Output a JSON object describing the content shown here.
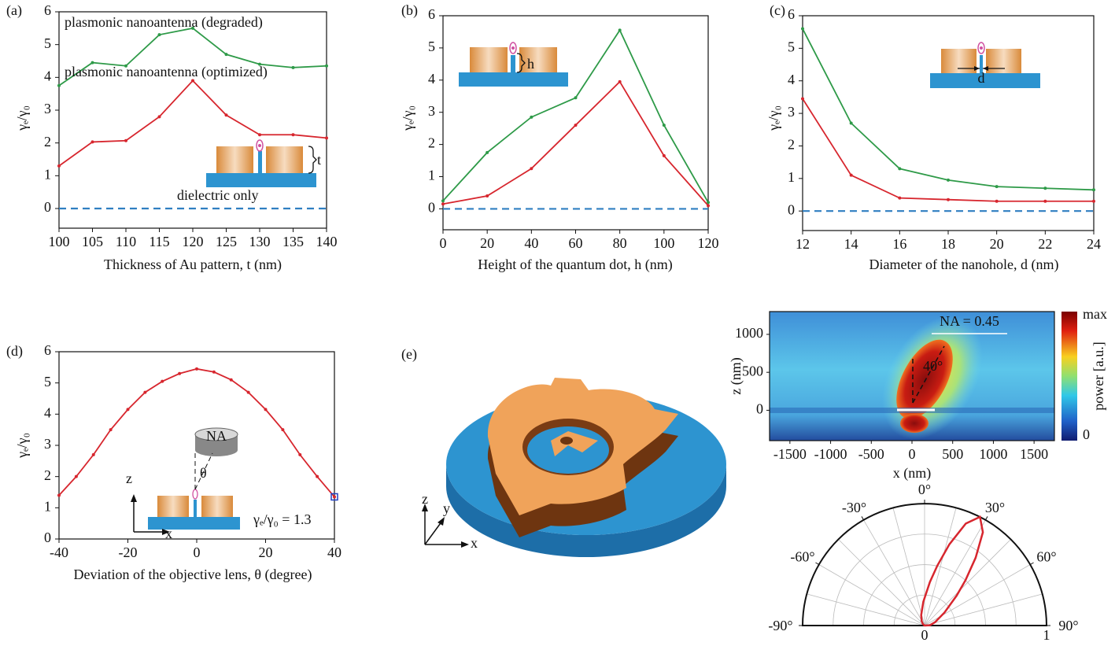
{
  "chart_data": [
    {
      "type": "line",
      "panel": "(a)",
      "xlabel": "Thickness of Au pattern, t (nm)",
      "ylabel": "γₑ/γ₀",
      "x": [
        100,
        105,
        110,
        115,
        120,
        125,
        130,
        135,
        140
      ],
      "xlim": [
        100,
        140
      ],
      "xticks": [
        100,
        105,
        110,
        115,
        120,
        125,
        130,
        135,
        140
      ],
      "ylim": [
        -0.6,
        6
      ],
      "yticks": [
        0,
        1,
        2,
        3,
        4,
        5,
        6
      ],
      "series": [
        {
          "name": "plasmonic nanoantenna (degraded)",
          "color": "#2e9a48",
          "values": [
            3.75,
            4.45,
            4.35,
            5.3,
            5.5,
            4.7,
            4.4,
            4.3,
            4.35
          ]
        },
        {
          "name": "plasmonic nanoantenna (optimized)",
          "color": "#d7262e",
          "values": [
            1.3,
            2.03,
            2.07,
            2.8,
            3.9,
            2.85,
            2.25,
            2.25,
            2.15
          ]
        },
        {
          "name": "dielectric only",
          "color": "#2f7fc1",
          "dashed": true,
          "values": [
            0,
            0,
            0,
            0,
            0,
            0,
            0,
            0,
            0
          ]
        }
      ],
      "inset_label": "t"
    },
    {
      "type": "line",
      "panel": "(b)",
      "xlabel": "Height of the quantum dot, h (nm)",
      "ylabel": "γₑ/γ₀",
      "x": [
        0,
        20,
        40,
        60,
        80,
        100,
        120
      ],
      "xlim": [
        0,
        120
      ],
      "xticks": [
        0,
        20,
        40,
        60,
        80,
        100,
        120
      ],
      "ylim": [
        -0.65,
        6
      ],
      "yticks": [
        0,
        1,
        2,
        3,
        4,
        5,
        6
      ],
      "series": [
        {
          "color": "#2e9a48",
          "values": [
            0.25,
            1.75,
            2.85,
            3.45,
            5.55,
            2.6,
            0.2
          ]
        },
        {
          "color": "#d7262e",
          "values": [
            0.15,
            0.4,
            1.25,
            2.6,
            3.95,
            1.65,
            0.1
          ]
        },
        {
          "color": "#2f7fc1",
          "dashed": true,
          "values": [
            0,
            0,
            0,
            0,
            0,
            0,
            0
          ]
        }
      ],
      "inset_label": "h"
    },
    {
      "type": "line",
      "panel": "(c)",
      "xlabel": "Diameter of the nanohole, d (nm)",
      "ylabel": "γₑ/γ₀",
      "x": [
        12,
        14,
        16,
        18,
        20,
        22,
        24
      ],
      "xlim": [
        12,
        24
      ],
      "xticks": [
        12,
        14,
        16,
        18,
        20,
        22,
        24
      ],
      "ylim": [
        -0.6,
        6
      ],
      "yticks": [
        0,
        1,
        2,
        3,
        4,
        5,
        6
      ],
      "series": [
        {
          "color": "#2e9a48",
          "values": [
            5.6,
            2.7,
            1.3,
            0.95,
            0.75,
            0.7,
            0.65
          ]
        },
        {
          "color": "#d7262e",
          "values": [
            3.45,
            1.1,
            0.4,
            0.35,
            0.3,
            0.3,
            0.3
          ]
        },
        {
          "color": "#2f7fc1",
          "dashed": true,
          "values": [
            0,
            0,
            0,
            0,
            0,
            0,
            0
          ]
        }
      ],
      "inset_label": "d"
    },
    {
      "type": "line",
      "panel": "(d)",
      "xlabel": "Deviation of the objective lens, θ (degree)",
      "ylabel": "γₑ/γ₀",
      "x": [
        -40,
        -35,
        -30,
        -25,
        -20,
        -15,
        -10,
        -5,
        0,
        5,
        10,
        15,
        20,
        25,
        30,
        35,
        40
      ],
      "xlim": [
        -40,
        40
      ],
      "xticks": [
        -40,
        -20,
        0,
        20,
        40
      ],
      "ylim": [
        0,
        6
      ],
      "yticks": [
        0,
        1,
        2,
        3,
        4,
        5,
        6
      ],
      "series": [
        {
          "color": "#d7262e",
          "values": [
            1.4,
            2.0,
            2.7,
            3.5,
            4.15,
            4.7,
            5.05,
            5.3,
            5.45,
            5.35,
            5.1,
            4.7,
            4.15,
            3.5,
            2.7,
            2.0,
            1.35
          ]
        }
      ],
      "annotation": "γₑ/γ₀ = 1.3",
      "inset_labels": {
        "lens": "NA",
        "angle": "θ",
        "z": "z",
        "x": "x"
      }
    },
    {
      "type": "image",
      "panel": "(e)",
      "axis_labels": [
        "z",
        "y",
        "x"
      ]
    },
    {
      "type": "heatmap",
      "xlabel": "x (nm)",
      "ylabel": "z (nm)",
      "xlim": [
        -1750,
        1750
      ],
      "xticks": [
        -1500,
        -1000,
        -500,
        0,
        500,
        1000,
        1500
      ],
      "ylim": [
        -400,
        1300
      ],
      "yticks": [
        0,
        500,
        1000
      ],
      "colorbar": {
        "title": "power [a.u.]",
        "max_label": "max",
        "min_label": "0"
      },
      "annotations": [
        "NA = 0.45",
        "40°"
      ]
    },
    {
      "type": "polar",
      "color": "#d7262e",
      "theta": [
        -63,
        -48,
        -33,
        -18,
        -3,
        7,
        12,
        17,
        22,
        27,
        32,
        37,
        42,
        47,
        57,
        72,
        87
      ],
      "r": [
        0,
        0.019,
        0.044,
        0.09,
        0.195,
        0.36,
        0.502,
        0.696,
        0.902,
        1,
        0.902,
        0.696,
        0.502,
        0.36,
        0.195,
        0.09,
        0.044
      ],
      "rlim": [
        0,
        1
      ],
      "rticks": [
        0,
        1
      ],
      "rgrid": [
        0.25,
        0.5,
        0.75
      ],
      "thetaticks": [
        {
          "value": -90,
          "label": "-90°"
        },
        {
          "value": -60,
          "label": "-60°"
        },
        {
          "value": -30,
          "label": "-30°"
        },
        {
          "value": 0,
          "label": "0°"
        },
        {
          "value": 30,
          "label": "30°"
        },
        {
          "value": 60,
          "label": "60°"
        },
        {
          "value": 90,
          "label": "90°"
        }
      ],
      "thetagrid": [
        -75,
        -60,
        -45,
        -30,
        -15,
        0,
        15,
        30,
        45,
        60,
        75
      ]
    }
  ]
}
